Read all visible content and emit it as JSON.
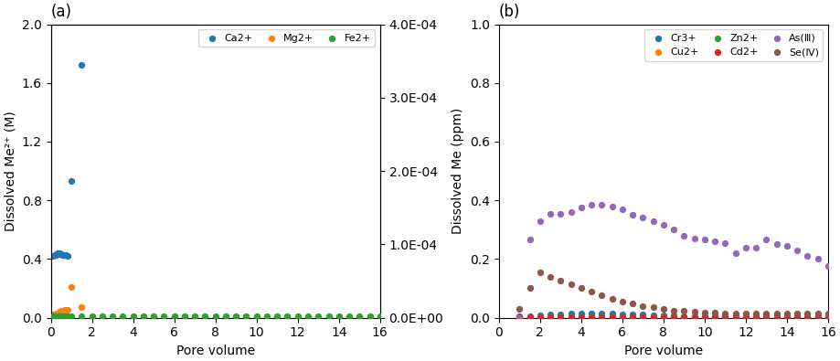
{
  "chart_data": [
    {
      "type": "scatter",
      "title": "(a)",
      "x_label": "Pore volume",
      "y_label": "Dissolved Me²⁺ (M)",
      "xlim": [
        0,
        16
      ],
      "xticks": [
        0,
        2,
        4,
        6,
        8,
        10,
        12,
        14,
        16
      ],
      "ylim": [
        0,
        2.0
      ],
      "yticks": [
        0.0,
        0.4,
        0.8,
        1.2,
        1.6,
        2.0
      ],
      "y2lim": [
        0,
        0.0004
      ],
      "y2ticks": [
        {
          "value": 0.0,
          "label": "0.0E+00"
        },
        {
          "value": 0.0001,
          "label": "1.0E-04"
        },
        {
          "value": 0.0002,
          "label": "2.0E-04"
        },
        {
          "value": 0.0003,
          "label": "3.0E-04"
        },
        {
          "value": 0.0004,
          "label": "4.0E-04"
        }
      ],
      "grid": false,
      "legend": "upper right",
      "series": [
        {
          "name": "Ca2+",
          "x": [
            0.1,
            0.2,
            0.25,
            0.3,
            0.35,
            0.4,
            0.45,
            0.5,
            0.55,
            0.6,
            0.65,
            0.7,
            0.75,
            0.8,
            1.0,
            1.5,
            2.0,
            2.5,
            3.0,
            3.5,
            4.0,
            4.5,
            5.0,
            5.5,
            6.0,
            6.5,
            7.0,
            7.5,
            8.0,
            8.5,
            9.0,
            9.5,
            10.0,
            10.5,
            11.0,
            11.5,
            12.0,
            12.5,
            13.0,
            13.5,
            14.0,
            14.5,
            15.0,
            15.5,
            16.0
          ],
          "values": [
            0.42,
            0.425,
            0.43,
            0.435,
            0.44,
            0.44,
            0.435,
            0.435,
            0.43,
            0.43,
            0.425,
            0.43,
            0.425,
            0.42,
            0.93,
            1.72,
            0.005,
            0.005,
            0.005,
            0.005,
            0.005,
            0.005,
            0.005,
            0.005,
            0.005,
            0.005,
            0.005,
            0.005,
            0.005,
            0.005,
            0.005,
            0.005,
            0.005,
            0.005,
            0.005,
            0.005,
            0.005,
            0.005,
            0.005,
            0.005,
            0.005,
            0.005,
            0.005,
            0.005,
            0.005
          ]
        },
        {
          "name": "Mg2+",
          "x": [
            0.1,
            0.2,
            0.3,
            0.4,
            0.5,
            0.6,
            0.7,
            0.8,
            1.0,
            1.5,
            2.0,
            2.5,
            3.0,
            3.5,
            4.0,
            4.5,
            5.0,
            5.5,
            6.0,
            6.5,
            7.0,
            7.5,
            8.0,
            8.5,
            9.0,
            9.5,
            10.0,
            10.5,
            11.0,
            11.5,
            12.0,
            12.5,
            13.0,
            13.5,
            14.0,
            14.5,
            15.0,
            15.5,
            16.0
          ],
          "values": [
            0.02,
            0.025,
            0.03,
            0.04,
            0.045,
            0.05,
            0.055,
            0.055,
            0.21,
            0.07,
            0.005,
            0.005,
            0.005,
            0.005,
            0.005,
            0.005,
            0.005,
            0.005,
            0.005,
            0.005,
            0.005,
            0.005,
            0.005,
            0.005,
            0.005,
            0.005,
            0.005,
            0.005,
            0.005,
            0.005,
            0.005,
            0.005,
            0.005,
            0.005,
            0.005,
            0.005,
            0.005,
            0.005,
            0.005
          ]
        },
        {
          "name": "Fe2+",
          "axis": "y2",
          "x": [
            0.1,
            0.2,
            0.3,
            0.4,
            0.5,
            0.6,
            0.7,
            0.8,
            1.0,
            1.5,
            2.0,
            2.5,
            3.0,
            3.5,
            4.0,
            4.5,
            5.0,
            5.5,
            6.0,
            6.5,
            7.0,
            7.5,
            8.0,
            8.5,
            9.0,
            9.5,
            10.0,
            10.5,
            11.0,
            11.5,
            12.0,
            12.5,
            13.0,
            13.5,
            14.0,
            14.5,
            15.0,
            15.5,
            16.0
          ],
          "values": [
            2e-06,
            2e-06,
            2e-06,
            2e-06,
            2e-06,
            2e-06,
            2e-06,
            2e-06,
            2e-06,
            2e-06,
            2e-06,
            2e-06,
            2e-06,
            2e-06,
            2e-06,
            2e-06,
            2e-06,
            2e-06,
            2e-06,
            2e-06,
            2e-06,
            2e-06,
            2e-06,
            2e-06,
            2e-06,
            2e-06,
            2e-06,
            2e-06,
            2e-06,
            2e-06,
            2e-06,
            2e-06,
            2e-06,
            2e-06,
            2e-06,
            2e-06,
            2e-06,
            2e-06,
            2e-06
          ]
        }
      ]
    },
    {
      "type": "scatter",
      "title": "(b)",
      "x_label": "Pore volume",
      "y_label": "Dissolved Me (ppm)",
      "xlim": [
        0,
        16
      ],
      "xticks": [
        0,
        2,
        4,
        6,
        8,
        10,
        12,
        14,
        16
      ],
      "ylim": [
        0,
        1.0
      ],
      "yticks": [
        0.0,
        0.2,
        0.4,
        0.6,
        0.8,
        1.0
      ],
      "grid": false,
      "legend": "upper right",
      "series": [
        {
          "name": "Cr3+",
          "x": [
            1.0,
            1.5,
            2.0,
            2.5,
            3.0,
            3.5,
            4.0,
            4.5,
            5.0,
            5.5,
            6.0,
            6.5,
            7.0,
            7.5,
            8.0,
            8.5,
            9.0,
            9.5,
            10.0,
            10.5,
            11.0,
            11.5,
            12.0,
            12.5,
            13.0,
            13.5,
            14.0,
            14.5,
            15.0,
            15.5,
            16.0
          ],
          "values": [
            0.004,
            0.004,
            0.007,
            0.01,
            0.012,
            0.013,
            0.013,
            0.014,
            0.013,
            0.013,
            0.012,
            0.011,
            0.01,
            0.009,
            0.008,
            0.007,
            0.006,
            0.005,
            0.005,
            0.005,
            0.004,
            0.004,
            0.004,
            0.003,
            0.003,
            0.003,
            0.003,
            0.003,
            0.002,
            0.002,
            0.002
          ]
        },
        {
          "name": "Cu2+",
          "x": [
            1.0,
            1.5,
            2.0,
            2.5,
            3.0,
            3.5,
            4.0,
            4.5,
            5.0,
            5.5,
            6.0,
            6.5,
            7.0,
            7.5,
            8.0,
            8.5,
            9.0,
            9.5,
            10.0,
            10.5,
            11.0,
            11.5,
            12.0,
            12.5,
            13.0,
            13.5,
            14.0,
            14.5,
            15.0,
            15.5,
            16.0
          ],
          "values": [
            0.002,
            0.002,
            0.002,
            0.002,
            0.002,
            0.002,
            0.002,
            0.002,
            0.002,
            0.002,
            0.002,
            0.002,
            0.002,
            0.002,
            0.002,
            0.002,
            0.002,
            0.002,
            0.002,
            0.002,
            0.002,
            0.002,
            0.002,
            0.002,
            0.002,
            0.002,
            0.002,
            0.002,
            0.002,
            0.002,
            0.002
          ]
        },
        {
          "name": "Zn2+",
          "x": [
            1.0,
            1.5,
            2.0,
            2.5,
            3.0,
            3.5,
            4.0,
            4.5,
            5.0,
            5.5,
            6.0,
            6.5,
            7.0,
            7.5,
            8.0,
            8.5,
            9.0,
            9.5,
            10.0,
            10.5,
            11.0,
            11.5,
            12.0,
            12.5,
            13.0,
            13.5,
            14.0,
            14.5,
            15.0,
            15.5,
            16.0
          ],
          "values": [
            0.001,
            0.001,
            0.001,
            0.001,
            0.001,
            0.001,
            0.001,
            0.001,
            0.001,
            0.001,
            0.001,
            0.001,
            0.001,
            0.001,
            0.001,
            0.001,
            0.001,
            0.001,
            0.001,
            0.001,
            0.001,
            0.001,
            0.001,
            0.001,
            0.001,
            0.001,
            0.001,
            0.001,
            0.001,
            0.001,
            0.002
          ]
        },
        {
          "name": "Cd2+",
          "x": [
            1.0,
            1.5,
            2.0,
            2.5,
            3.0,
            3.5,
            4.0,
            4.5,
            5.0,
            5.5,
            6.0,
            6.5,
            7.0,
            7.5,
            8.0,
            8.5,
            9.0,
            9.5,
            10.0,
            10.5,
            11.0,
            11.5,
            12.0,
            12.5,
            13.0,
            13.5,
            14.0,
            14.5,
            15.0,
            15.5,
            16.0
          ],
          "values": [
            0.001,
            0.001,
            0.001,
            0.001,
            0.001,
            0.001,
            0.001,
            0.001,
            0.001,
            0.001,
            0.001,
            0.001,
            0.001,
            0.001,
            0.001,
            0.001,
            0.001,
            0.001,
            0.001,
            0.001,
            0.001,
            0.001,
            0.001,
            0.002,
            0.002,
            0.002,
            0.002,
            0.002,
            0.002,
            0.002,
            0.002
          ]
        },
        {
          "name": "As(Ⅲ)",
          "x": [
            1.0,
            1.5,
            2.0,
            2.5,
            3.0,
            3.5,
            4.0,
            4.5,
            5.0,
            5.5,
            6.0,
            6.5,
            7.0,
            7.5,
            8.0,
            8.5,
            9.0,
            9.5,
            10.0,
            10.5,
            11.0,
            11.5,
            12.0,
            12.5,
            13.0,
            13.5,
            14.0,
            14.5,
            15.0,
            15.5,
            16.0
          ],
          "values": [
            0.0,
            0.265,
            0.33,
            0.355,
            0.355,
            0.36,
            0.375,
            0.385,
            0.385,
            0.38,
            0.37,
            0.35,
            0.34,
            0.33,
            0.315,
            0.3,
            0.28,
            0.27,
            0.265,
            0.26,
            0.255,
            0.22,
            0.24,
            0.24,
            0.265,
            0.25,
            0.245,
            0.23,
            0.21,
            0.2,
            0.175
          ]
        },
        {
          "name": "Se(Ⅳ)",
          "x": [
            1.0,
            1.5,
            2.0,
            2.5,
            3.0,
            3.5,
            4.0,
            4.5,
            5.0,
            5.5,
            6.0,
            6.5,
            7.0,
            7.5,
            8.0,
            8.5,
            9.0,
            9.5,
            10.0,
            10.5,
            11.0,
            11.5,
            12.0,
            12.5,
            13.0,
            13.5,
            14.0,
            14.5,
            15.0,
            15.5,
            16.0
          ],
          "values": [
            0.03,
            0.1,
            0.155,
            0.14,
            0.125,
            0.115,
            0.1,
            0.09,
            0.075,
            0.065,
            0.055,
            0.05,
            0.04,
            0.035,
            0.03,
            0.025,
            0.022,
            0.02,
            0.018,
            0.017,
            0.015,
            0.015,
            0.015,
            0.015,
            0.015,
            0.015,
            0.015,
            0.015,
            0.015,
            0.015,
            0.015
          ]
        }
      ]
    }
  ]
}
